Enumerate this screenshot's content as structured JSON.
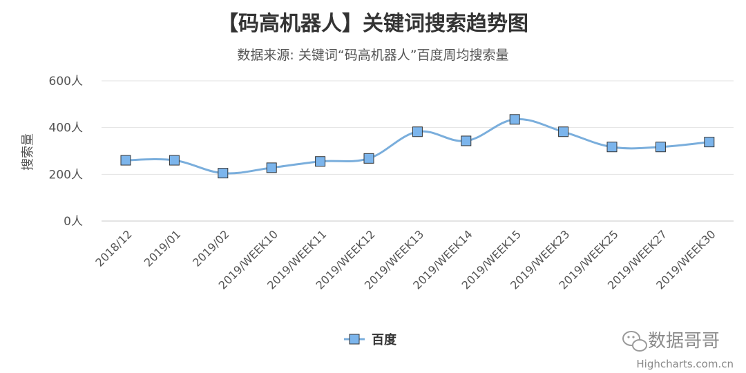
{
  "chart_data": {
    "type": "line",
    "title": "【码高机器人】关键词搜索趋势图",
    "subtitle": "数据来源: 关键词“码高机器人”百度周均搜索量",
    "ylabel": "搜索量",
    "y_unit": "人",
    "ylim": [
      0,
      600
    ],
    "yticks": [
      0,
      200,
      400,
      600
    ],
    "ytick_labels": [
      "0人",
      "200人",
      "400人",
      "600人"
    ],
    "categories": [
      "2018/12",
      "2019/01",
      "2019/02",
      "2019/WEEK10",
      "2019/WEEK11",
      "2019/WEEK12",
      "2019/WEEK13",
      "2019/WEEK14",
      "2019/WEEK15",
      "2019/WEEK23",
      "2019/WEEK25",
      "2019/WEEK27",
      "2019/WEEK30"
    ],
    "series": [
      {
        "name": "百度",
        "values": [
          260,
          260,
          205,
          228,
          255,
          268,
          382,
          343,
          435,
          382,
          317,
          317,
          338
        ],
        "color": "#7aaedc",
        "marker_color": "#7cb5ec",
        "marker_border": "#333333"
      }
    ],
    "grid": true,
    "legend_position": "bottom-center"
  },
  "watermark": {
    "text": "数据哥哥",
    "icon": "wechat-icon"
  },
  "credit": "Highcharts.com.cn"
}
